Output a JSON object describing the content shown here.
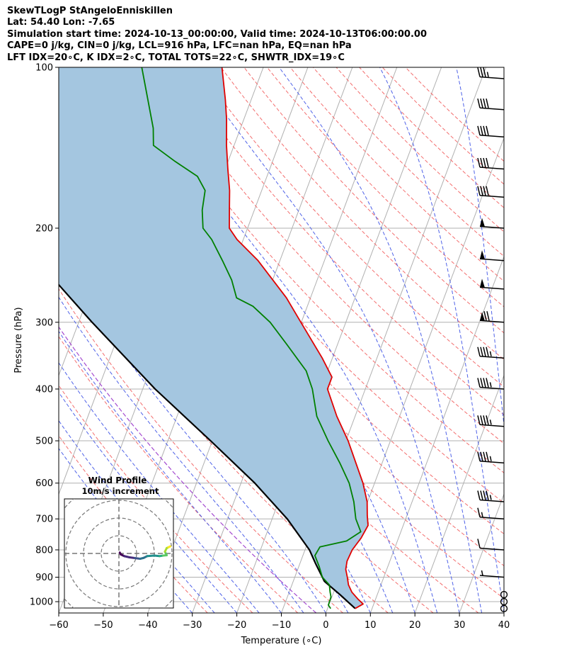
{
  "header": {
    "line1": "SkewTLogP StAngeloEnniskillen",
    "line2": "Lat: 54.40   Lon: -7.65",
    "line3": "Simulation start time: 2024-10-13_00:00:00, Valid time: 2024-10-13T06:00:00.00",
    "line4": "CAPE=0 j/kg, CIN=0 j/kg, LCL=916 hPa, LFC=nan hPa, EQ=nan hPa",
    "line5": "LFT IDX=20∘C, K IDX=2∘C, TOTAL TOTS=22∘C, SHWTR_IDX=19∘C"
  },
  "chart_data": {
    "type": "skew-t log-p",
    "xlabel": "Temperature (∘C)",
    "ylabel": "Pressure (hPa)",
    "xlim": [
      -60,
      40
    ],
    "ylim_hpa": [
      1050,
      100
    ],
    "log_pressure": true,
    "skew_deg_per_decade": 45,
    "grid": true,
    "x_ticks": [
      -60,
      -50,
      -40,
      -30,
      -20,
      -10,
      0,
      10,
      20,
      30,
      40
    ],
    "y_ticks": [
      1000,
      900,
      800,
      700,
      600,
      500,
      400,
      300,
      200,
      100
    ],
    "temperature_color": "#e00000",
    "dewpoint_color": "#008000",
    "parcel_color": "#000000",
    "shade_color": "#a4c6e0",
    "temperature_profile": [
      {
        "p": 1030,
        "t": 6.2
      },
      {
        "p": 1010,
        "t": 7.6
      },
      {
        "p": 990,
        "t": 6.1
      },
      {
        "p": 960,
        "t": 4.1
      },
      {
        "p": 930,
        "t": 2.7
      },
      {
        "p": 900,
        "t": 1.8
      },
      {
        "p": 870,
        "t": 0.8
      },
      {
        "p": 840,
        "t": 0.4
      },
      {
        "p": 800,
        "t": 0.6
      },
      {
        "p": 760,
        "t": 1.6
      },
      {
        "p": 720,
        "t": 2.1
      },
      {
        "p": 690,
        "t": 1.1
      },
      {
        "p": 650,
        "t": -0.1
      },
      {
        "p": 600,
        "t": -2.6
      },
      {
        "p": 550,
        "t": -5.9
      },
      {
        "p": 500,
        "t": -9.5
      },
      {
        "p": 450,
        "t": -14.1
      },
      {
        "p": 400,
        "t": -18.5
      },
      {
        "p": 380,
        "t": -18.5
      },
      {
        "p": 350,
        "t": -22.3
      },
      {
        "p": 300,
        "t": -30.1
      },
      {
        "p": 270,
        "t": -35.4
      },
      {
        "p": 230,
        "t": -44.9
      },
      {
        "p": 210,
        "t": -51.4
      },
      {
        "p": 200,
        "t": -54.1
      },
      {
        "p": 185,
        "t": -55.6
      },
      {
        "p": 170,
        "t": -57.2
      },
      {
        "p": 155,
        "t": -59.4
      },
      {
        "p": 140,
        "t": -61.7
      },
      {
        "p": 125,
        "t": -63.9
      },
      {
        "p": 115,
        "t": -65.8
      },
      {
        "p": 100,
        "t": -69.3
      }
    ],
    "dewpoint_profile": [
      {
        "p": 1030,
        "t": 0.7
      },
      {
        "p": 1015,
        "t": -0.1
      },
      {
        "p": 980,
        "t": -0.2
      },
      {
        "p": 960,
        "t": -0.8
      },
      {
        "p": 930,
        "t": -1.6
      },
      {
        "p": 900,
        "t": -3.8
      },
      {
        "p": 860,
        "t": -5.4
      },
      {
        "p": 820,
        "t": -7.3
      },
      {
        "p": 790,
        "t": -6.9
      },
      {
        "p": 770,
        "t": -1.4
      },
      {
        "p": 740,
        "t": 1.0
      },
      {
        "p": 700,
        "t": -1.2
      },
      {
        "p": 650,
        "t": -3.1
      },
      {
        "p": 600,
        "t": -5.7
      },
      {
        "p": 550,
        "t": -9.5
      },
      {
        "p": 500,
        "t": -14.0
      },
      {
        "p": 450,
        "t": -18.6
      },
      {
        "p": 400,
        "t": -21.9
      },
      {
        "p": 370,
        "t": -24.8
      },
      {
        "p": 330,
        "t": -31.4
      },
      {
        "p": 300,
        "t": -37.0
      },
      {
        "p": 280,
        "t": -42.2
      },
      {
        "p": 270,
        "t": -46.6
      },
      {
        "p": 250,
        "t": -49.2
      },
      {
        "p": 230,
        "t": -52.9
      },
      {
        "p": 210,
        "t": -57.1
      },
      {
        "p": 200,
        "t": -60.0
      },
      {
        "p": 185,
        "t": -61.7
      },
      {
        "p": 170,
        "t": -62.7
      },
      {
        "p": 160,
        "t": -65.6
      },
      {
        "p": 150,
        "t": -71.9
      },
      {
        "p": 140,
        "t": -78.1
      },
      {
        "p": 130,
        "t": -79.6
      },
      {
        "p": 100,
        "t": -87.3
      }
    ],
    "parcel_profile": [
      {
        "p": 1030,
        "t": 6.2
      },
      {
        "p": 970,
        "t": 1.6
      },
      {
        "p": 916,
        "t": -3.0
      },
      {
        "p": 850,
        "t": -6.4
      },
      {
        "p": 800,
        "t": -9.0
      },
      {
        "p": 700,
        "t": -16.6
      },
      {
        "p": 600,
        "t": -26.9
      },
      {
        "p": 500,
        "t": -40.4
      },
      {
        "p": 400,
        "t": -57.2
      },
      {
        "p": 300,
        "t": -77.0
      },
      {
        "p": 250,
        "t": -89.0
      },
      {
        "p": 200,
        "t": -101.5
      },
      {
        "p": 150,
        "t": -114.0
      },
      {
        "p": 100,
        "t": -128.0
      }
    ],
    "wind_barbs": [
      {
        "p": 1030,
        "speed_kt": 0
      },
      {
        "p": 1000,
        "speed_kt": 0
      },
      {
        "p": 970,
        "speed_kt": 0
      },
      {
        "p": 900,
        "speed_kt": 5
      },
      {
        "p": 800,
        "speed_kt": 10
      },
      {
        "p": 700,
        "speed_kt": 15
      },
      {
        "p": 650,
        "speed_kt": 45
      },
      {
        "p": 550,
        "speed_kt": 45
      },
      {
        "p": 470,
        "speed_kt": 45
      },
      {
        "p": 400,
        "speed_kt": 45
      },
      {
        "p": 350,
        "speed_kt": 45
      },
      {
        "p": 300,
        "speed_kt": 70
      },
      {
        "p": 260,
        "speed_kt": 50
      },
      {
        "p": 230,
        "speed_kt": 50
      },
      {
        "p": 200,
        "speed_kt": 50
      },
      {
        "p": 175,
        "speed_kt": 40
      },
      {
        "p": 155,
        "speed_kt": 40
      },
      {
        "p": 135,
        "speed_kt": 40
      },
      {
        "p": 120,
        "speed_kt": 40
      },
      {
        "p": 105,
        "speed_kt": 35
      }
    ],
    "hodograph": {
      "title": "Wind Profile",
      "subtitle": "10m/s increment",
      "ring_increment_ms": 10,
      "trace_uv": [
        [
          0.5,
          0.5
        ],
        [
          1.0,
          -0.5
        ],
        [
          3,
          -1.5
        ],
        [
          6,
          -2.2
        ],
        [
          9,
          -2.6
        ],
        [
          12,
          -3
        ],
        [
          14,
          -2.5
        ],
        [
          16,
          -1.5
        ],
        [
          20,
          -1.2
        ],
        [
          23,
          -1.5
        ],
        [
          25,
          -1.2
        ],
        [
          27,
          -1.0
        ],
        [
          26,
          1
        ],
        [
          27,
          3
        ],
        [
          28,
          3.5
        ],
        [
          29,
          4
        ]
      ]
    }
  }
}
